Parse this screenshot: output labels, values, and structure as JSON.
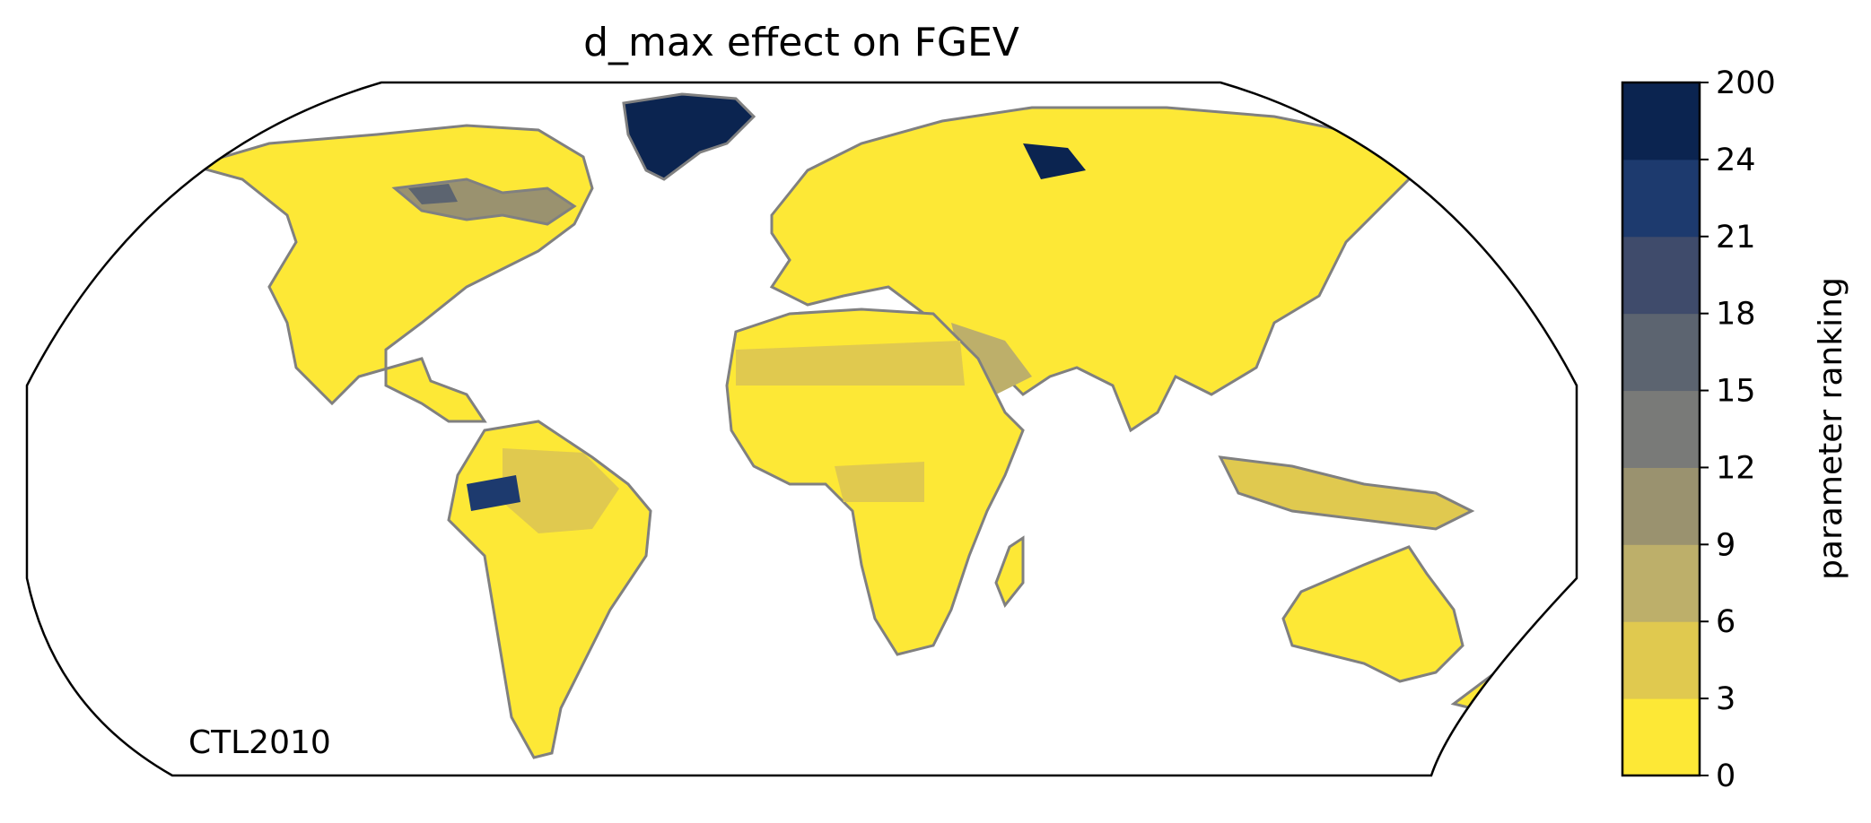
{
  "title": "d_max effect on FGEV",
  "map_label": "CTL2010",
  "colorbar": {
    "label": "parameter ranking",
    "ticks": [
      "0",
      "3",
      "6",
      "9",
      "12",
      "15",
      "18",
      "21",
      "24",
      "200"
    ],
    "colors": [
      "#fde836",
      "#e0c94f",
      "#bdaf6a",
      "#9a926f",
      "#797a78",
      "#5c6470",
      "#3f4b6b",
      "#1d3a6e",
      "#0b2450"
    ]
  },
  "colors": {
    "land_fill": "#fde836",
    "coastline": "#808080",
    "frame": "#000000"
  }
}
